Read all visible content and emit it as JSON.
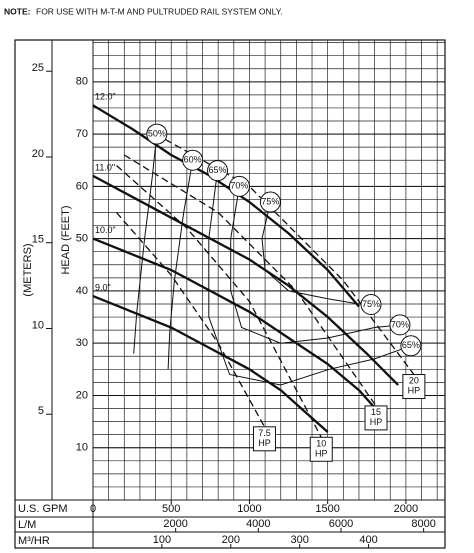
{
  "note_label": "NOTE:",
  "note": "FOR USE WITH M-T-M AND PULTRUDED RAIL SYSTEM ONLY.",
  "chart_data": {
    "type": "line",
    "xlabel": "U.S. GPM",
    "ylabel": "HEAD (FEET)",
    "y2label": "(METERS)",
    "xlim": [
      0,
      2250
    ],
    "ylim": [
      0,
      88
    ],
    "y2lim": [
      0,
      26.82
    ],
    "xticks": [
      0,
      500,
      1000,
      1500,
      2000
    ],
    "yticks": [
      10,
      20,
      30,
      40,
      50,
      60,
      70,
      80
    ],
    "y2ticks": [
      5,
      10,
      15,
      20,
      25
    ],
    "grid": true,
    "minor_grid": {
      "x": 100,
      "y": 2.5
    },
    "secondary_x_axes": [
      {
        "label": "L/M",
        "lim": [
          0,
          8517
        ],
        "ticks": [
          2000,
          4000,
          6000,
          8000
        ]
      },
      {
        "label": "M³/HR",
        "lim": [
          0,
          511
        ],
        "ticks": [
          100,
          200,
          300,
          400
        ]
      }
    ],
    "series": [
      {
        "name": "12.0\"",
        "color": "#111",
        "x": [
          0,
          250,
          500,
          750,
          1000,
          1250,
          1500,
          1700
        ],
        "values": [
          75.5,
          71,
          66,
          62,
          57,
          51,
          44,
          37
        ]
      },
      {
        "name": "11.0\"",
        "color": "#111",
        "x": [
          0,
          250,
          500,
          750,
          1000,
          1250,
          1500,
          1750,
          1950
        ],
        "values": [
          62,
          58,
          54,
          50,
          46,
          41,
          35,
          28,
          22
        ]
      },
      {
        "name": "10.0\"",
        "color": "#111",
        "x": [
          0,
          250,
          500,
          750,
          1000,
          1250,
          1500,
          1700,
          1850
        ],
        "values": [
          50,
          47,
          44,
          40,
          36,
          31,
          26,
          21,
          16
        ]
      },
      {
        "name": "9.0\"",
        "color": "#111",
        "x": [
          0,
          250,
          500,
          750,
          1000,
          1200,
          1350,
          1500
        ],
        "values": [
          39,
          36,
          33,
          29,
          25,
          21,
          17,
          13
        ]
      }
    ],
    "efficiency_series": [
      {
        "name": "50%",
        "color": "#111",
        "x": [
          408,
          380,
          330,
          280,
          260
        ],
        "values": [
          70,
          62,
          50,
          36,
          28
        ]
      },
      {
        "name": "60%",
        "color": "#111",
        "x": [
          637,
          580,
          520,
          490,
          480
        ],
        "values": [
          65,
          55,
          42,
          32,
          25
        ]
      },
      {
        "name": "65%",
        "color": "#111",
        "x": [
          796,
          740,
          740,
          873,
          1200,
          1510,
          1800,
          2032
        ],
        "values": [
          63,
          50,
          35,
          24,
          22,
          25,
          27,
          29.5
        ]
      },
      {
        "name": "70%",
        "color": "#111",
        "x": [
          936,
          880,
          880,
          950,
          1200,
          1500,
          1800,
          1962
        ],
        "values": [
          60,
          50,
          40,
          33,
          30,
          31,
          33,
          33.5
        ]
      },
      {
        "name": "75%",
        "color": "#111",
        "x": [
          1134,
          1080,
          1100,
          1250,
          1500,
          1700,
          1777
        ],
        "values": [
          57,
          50,
          44,
          40,
          38.5,
          37.5,
          37.4
        ]
      }
    ],
    "hp_series": [
      {
        "name": "7.5 HP",
        "color": "#111",
        "x": [
          150,
          500,
          800,
          1096
        ],
        "values": [
          55,
          43,
          30,
          14
        ]
      },
      {
        "name": "10 HP",
        "color": "#111",
        "x": [
          150,
          600,
          1000,
          1459
        ],
        "values": [
          64,
          52,
          38,
          12
        ]
      },
      {
        "name": "15 HP",
        "color": "#111",
        "x": [
          200,
          800,
          1300,
          1809
        ],
        "values": [
          66,
          55,
          40,
          18
        ]
      },
      {
        "name": "20 HP",
        "color": "#111",
        "x": [
          400,
          1000,
          1600,
          2051
        ],
        "values": [
          70,
          60,
          42,
          24
        ]
      }
    ]
  }
}
